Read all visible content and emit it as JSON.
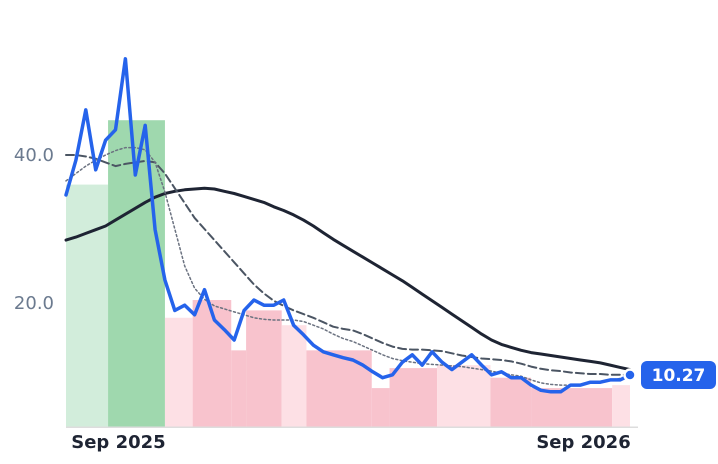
{
  "chart_data": {
    "type": "line",
    "ylim": [
      3.2,
      55
    ],
    "yticks": [
      {
        "value": 20,
        "label": "20.0"
      },
      {
        "value": 40,
        "label": "40.0"
      }
    ],
    "xticks": [
      {
        "value": 5,
        "label": "Sep 2025"
      },
      {
        "value": 52,
        "label": "Sep 2026"
      }
    ],
    "grid": false,
    "series": [
      {
        "color": "#1e2433",
        "dash": "solid",
        "width": 3,
        "values": [
          28.5,
          28.9,
          29.4,
          29.9,
          30.4,
          31.2,
          32,
          32.8,
          33.6,
          34.3,
          34.8,
          35.1,
          35.3,
          35.4,
          35.5,
          35.4,
          35.1,
          34.8,
          34.4,
          34,
          33.6,
          33,
          32.5,
          31.9,
          31.2,
          30.4,
          29.5,
          28.6,
          27.8,
          27,
          26.2,
          25.4,
          24.6,
          23.8,
          23,
          22.1,
          21.2,
          20.3,
          19.4,
          18.5,
          17.6,
          16.7,
          15.8,
          15,
          14.4,
          14,
          13.6,
          13.3,
          13.1,
          12.9,
          12.7,
          12.5,
          12.3,
          12.1,
          11.9,
          11.6,
          11.3,
          11
        ]
      },
      {
        "color": "#4b5563",
        "dash": "dashed",
        "width": 2,
        "values": [
          40,
          40,
          39.8,
          39.5,
          39,
          38.5,
          38.8,
          39,
          39.2,
          39,
          37.5,
          35.5,
          33.5,
          31.5,
          30,
          28.5,
          27,
          25.5,
          24,
          22.5,
          21.3,
          20.3,
          19.6,
          19,
          18.5,
          18,
          17.4,
          16.8,
          16.5,
          16.3,
          15.8,
          15.2,
          14.6,
          14.1,
          13.8,
          13.7,
          13.7,
          13.6,
          13.5,
          13.2,
          12.9,
          12.7,
          12.5,
          12.4,
          12.3,
          12.1,
          11.8,
          11.4,
          11.1,
          10.9,
          10.8,
          10.6,
          10.5,
          10.4,
          10.4,
          10.3,
          10.3,
          10.3
        ]
      },
      {
        "color": "#6b7280",
        "dash": "dotted",
        "width": 1.5,
        "values": [
          36.5,
          37.5,
          38.5,
          39.3,
          40,
          40.6,
          41,
          41,
          40.7,
          39,
          35,
          30,
          25,
          22,
          20.5,
          19.6,
          19.2,
          18.8,
          18.4,
          18,
          17.8,
          17.7,
          17.7,
          17.7,
          17.5,
          17,
          16.5,
          15.8,
          15.2,
          14.8,
          14.2,
          13.6,
          13,
          12.5,
          12.2,
          12,
          11.8,
          11.7,
          11.6,
          11.5,
          11.4,
          11.2,
          11,
          10.8,
          10.5,
          10.3,
          10.1,
          9.6,
          9.2,
          9,
          8.9,
          8.9,
          9,
          9.2,
          9.4,
          9.6,
          9.8,
          9.9
        ]
      },
      {
        "color": "#2563eb",
        "dash": "solid",
        "width": 3.5,
        "last_label": true,
        "values": [
          34.6,
          39.3,
          46.1,
          38,
          42,
          43.4,
          53,
          37.3,
          44,
          29.9,
          23.1,
          19,
          19.7,
          18.4,
          21.8,
          17.7,
          16.4,
          15,
          19,
          20.4,
          19.7,
          19.7,
          20.4,
          17,
          15.7,
          14.3,
          13.4,
          13,
          12.6,
          12.3,
          11.6,
          10.7,
          9.9,
          10.3,
          12,
          13,
          11.6,
          13.4,
          12,
          11,
          12,
          13,
          11.6,
          10.3,
          10.7,
          9.9,
          9.9,
          8.9,
          8.2,
          8,
          8,
          8.9,
          8.9,
          9.3,
          9.3,
          9.6,
          9.6,
          10.27
        ]
      }
    ],
    "bars": {
      "edges": [
        0,
        4.25,
        10,
        12.8,
        16.7,
        18.2,
        21.8,
        24.3,
        30.9,
        32.7,
        37.5,
        42.9,
        47,
        55.2,
        57
      ],
      "values": [
        36,
        44.7,
        18,
        20.4,
        13.6,
        19,
        17,
        13.6,
        8.5,
        11.2,
        11.6,
        9.9,
        8.5,
        8.9
      ],
      "colors": [
        "#d2eddb",
        "#9fd8ae",
        "#fde0e5",
        "#f8c3cd",
        "#f8c3cd",
        "#f8c3cd",
        "#fde0e5",
        "#f8c3cd",
        "#f8c3cd",
        "#f8c3cd",
        "#fde0e5",
        "#f8c3cd",
        "#f8c3cd",
        "#fde0e5"
      ]
    }
  }
}
